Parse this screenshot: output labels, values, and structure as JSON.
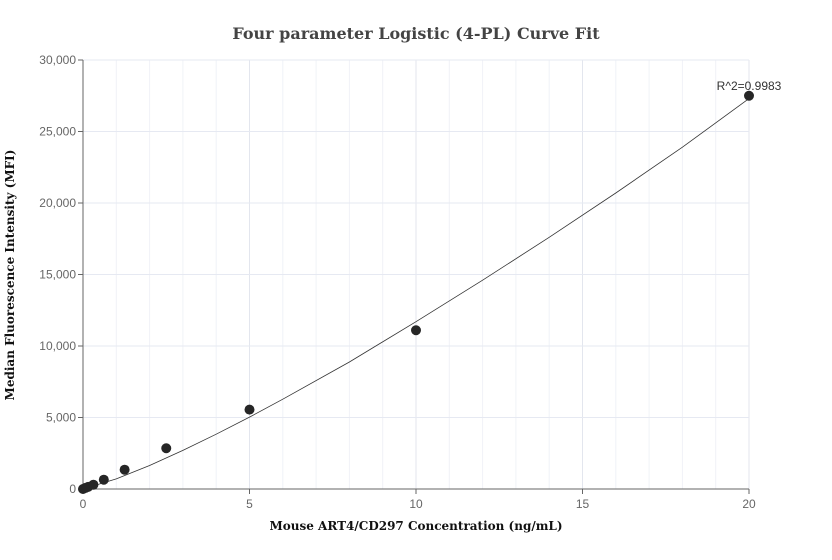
{
  "chart_data": {
    "type": "scatter",
    "title": "Four parameter Logistic (4-PL) Curve Fit",
    "xlabel": "Mouse ART4/CD297 Concentration (ng/mL)",
    "ylabel": "Median Fluorescence Intensity (MFI)",
    "xlim": [
      0,
      20
    ],
    "ylim": [
      0,
      30000
    ],
    "xticks": [
      "0",
      "5",
      "10",
      "15",
      "20"
    ],
    "xtick_values": [
      0,
      5,
      10,
      15,
      20
    ],
    "yticks": [
      "0",
      "5,000",
      "10,000",
      "15,000",
      "20,000",
      "25,000",
      "30,000"
    ],
    "ytick_values": [
      0,
      5000,
      10000,
      15000,
      20000,
      25000,
      30000
    ],
    "grid": true,
    "points": {
      "x": [
        0,
        0.078,
        0.156,
        0.3125,
        0.625,
        1.25,
        2.5,
        5,
        10,
        20
      ],
      "y": [
        0,
        80,
        150,
        300,
        650,
        1350,
        2850,
        5550,
        11100,
        27500
      ]
    },
    "fit_curve": {
      "x": [
        0,
        1,
        2,
        3,
        4,
        5,
        6,
        8,
        10,
        12,
        14,
        16,
        18,
        20
      ],
      "y": [
        0,
        705,
        1643,
        2700,
        3830,
        5030,
        6280,
        8880,
        11700,
        14600,
        17600,
        20700,
        23900,
        27300
      ]
    },
    "annotation": "R^2=0.9983",
    "colors": {
      "points": "#262626",
      "curve": "#333333",
      "grid": "#e6e9f2",
      "axis": "#666666"
    }
  }
}
